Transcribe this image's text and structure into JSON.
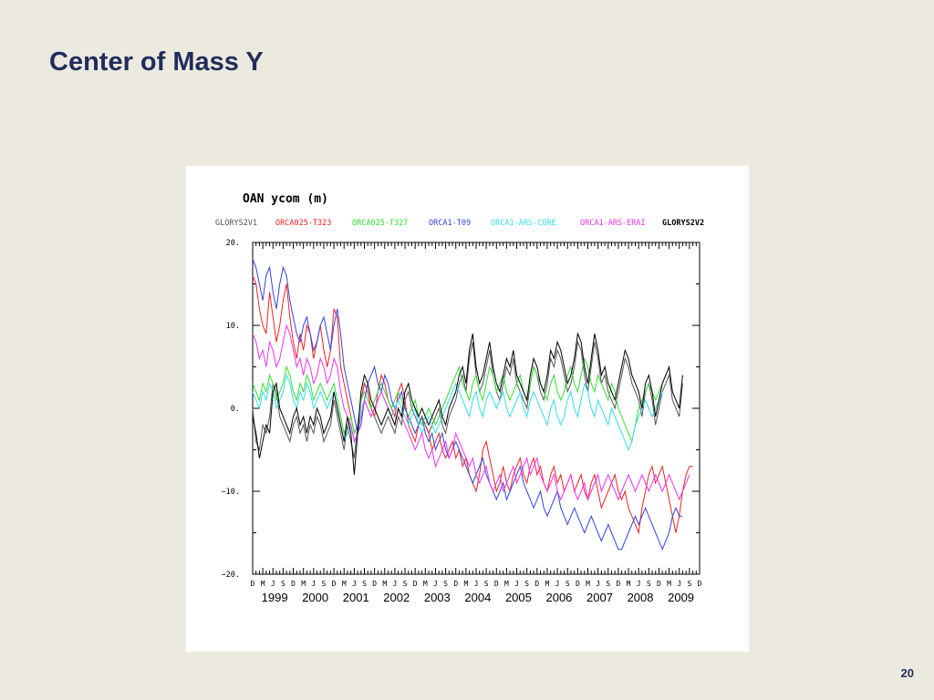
{
  "slide": {
    "title": "Center of Mass Y",
    "page_number": "20"
  },
  "chart_data": {
    "type": "line",
    "title": "OAN    ycom    (m)",
    "xlabel": "",
    "ylabel": "",
    "ylim": [
      -20,
      20
    ],
    "y_ticks": [
      20,
      10,
      0,
      -10,
      -20
    ],
    "y_tick_labels": [
      "20.",
      "10.",
      "0.",
      "−10.",
      "−20."
    ],
    "month_labels": [
      "D",
      "M",
      "J",
      "S",
      "D",
      "M",
      "J",
      "S",
      "D",
      "M",
      "J",
      "S",
      "D",
      "M",
      "J",
      "S",
      "D",
      "M",
      "J",
      "S",
      "D",
      "M",
      "J",
      "S",
      "D",
      "M",
      "J",
      "S",
      "D",
      "M",
      "J",
      "S",
      "D",
      "M",
      "J",
      "S",
      "D",
      "M",
      "J",
      "S",
      "D",
      "M",
      "J",
      "S",
      "D"
    ],
    "years": [
      "1999",
      "2000",
      "2001",
      "2002",
      "2003",
      "2004",
      "2005",
      "2006",
      "2007",
      "2008",
      "2009"
    ],
    "x_start": "1998-12",
    "x_end": "2009-12",
    "grid": false,
    "legend_position": "top",
    "series": [
      {
        "name": "GLORYS2V1",
        "color": "#555555",
        "values": [
          0,
          -4,
          -5,
          -2,
          -3,
          -1,
          3,
          2,
          -1,
          -2,
          -3,
          -4,
          -2,
          -1,
          -3,
          -2,
          -4,
          -2,
          -3,
          -1,
          -2,
          -4,
          -3,
          -2,
          1,
          -1,
          -3,
          -5,
          -2,
          -4,
          -6,
          -2,
          1,
          3,
          2,
          0,
          -1,
          -2,
          -3,
          -2,
          -1,
          -2,
          -3,
          -1,
          -2,
          1,
          2,
          0,
          -1,
          -2,
          -1,
          -2,
          -3,
          -2,
          -1,
          0,
          -2,
          -3,
          -1,
          0,
          1,
          3,
          4,
          2,
          6,
          8,
          4,
          2,
          3,
          5,
          7,
          4,
          2,
          1,
          3,
          5,
          4,
          6,
          3,
          2,
          1,
          0,
          3,
          5,
          4,
          2,
          1,
          3,
          6,
          5,
          7,
          6,
          4,
          2,
          3,
          5,
          8,
          7,
          4,
          2,
          5,
          8,
          6,
          3,
          4,
          2,
          1,
          0,
          2,
          4,
          6,
          5,
          3,
          2,
          1,
          -1,
          2,
          3,
          1,
          -2,
          0,
          2,
          3,
          4,
          1,
          0,
          -1,
          3
        ]
      },
      {
        "name": "ORCA025-T323",
        "color": "#EE2222",
        "values": [
          16,
          15,
          12,
          10,
          9,
          14,
          11,
          8,
          10,
          13,
          15,
          11,
          8,
          6,
          9,
          7,
          10,
          9,
          6,
          8,
          10,
          7,
          5,
          7,
          12,
          11,
          5,
          3,
          1,
          -1,
          -3,
          -2,
          1,
          3,
          2,
          0,
          -1,
          2,
          4,
          3,
          1,
          0,
          -1,
          2,
          3,
          1,
          -2,
          -3,
          -4,
          -2,
          -1,
          -2,
          -3,
          -5,
          -4,
          -3,
          -5,
          -6,
          -5,
          -4,
          -6,
          -5,
          -7,
          -6,
          -8,
          -9,
          -10,
          -8,
          -5,
          -4,
          -6,
          -8,
          -10,
          -9,
          -7,
          -9,
          -10,
          -8,
          -7,
          -6,
          -8,
          -9,
          -7,
          -6,
          -8,
          -7,
          -9,
          -10,
          -8,
          -7,
          -9,
          -8,
          -10,
          -9,
          -8,
          -10,
          -9,
          -8,
          -10,
          -11,
          -9,
          -8,
          -10,
          -12,
          -11,
          -10,
          -9,
          -8,
          -10,
          -11,
          -10,
          -12,
          -13,
          -14,
          -15,
          -12,
          -10,
          -8,
          -7,
          -9,
          -8,
          -7,
          -9,
          -11,
          -13,
          -15,
          -13,
          -10,
          -8,
          -7,
          -7
        ]
      },
      {
        "name": "ORCA025-T327",
        "color": "#33DD33",
        "values": [
          3,
          2,
          1,
          3,
          2,
          4,
          3,
          1,
          2,
          3,
          5,
          4,
          2,
          1,
          3,
          2,
          4,
          3,
          1,
          2,
          3,
          2,
          1,
          2,
          3,
          1,
          -1,
          -3,
          -2,
          -1,
          -3,
          -2,
          1,
          2,
          1,
          0,
          1,
          2,
          3,
          2,
          1,
          0,
          1,
          2,
          1,
          0,
          -1,
          0,
          1,
          -1,
          -2,
          -1,
          0,
          -1,
          -2,
          -1,
          0,
          1,
          2,
          3,
          4,
          5,
          3,
          2,
          1,
          3,
          4,
          2,
          1,
          3,
          5,
          4,
          2,
          3,
          4,
          2,
          1,
          2,
          3,
          4,
          2,
          1,
          3,
          5,
          4,
          3,
          2,
          1,
          3,
          4,
          2,
          1,
          2,
          4,
          5,
          3,
          2,
          4,
          6,
          5,
          3,
          2,
          4,
          3,
          2,
          1,
          3,
          2,
          0,
          -1,
          -2,
          -3,
          -4,
          -2,
          0,
          1,
          2,
          3,
          2,
          1,
          2,
          3,
          4
        ]
      },
      {
        "name": "ORCA1-T09",
        "color": "#3344DD",
        "values": [
          18,
          17,
          15,
          13,
          16,
          17,
          14,
          12,
          15,
          17,
          16,
          13,
          11,
          9,
          8,
          10,
          11,
          9,
          7,
          8,
          10,
          11,
          9,
          7,
          10,
          12,
          9,
          5,
          3,
          1,
          -1,
          -3,
          -2,
          1,
          3,
          4,
          5,
          3,
          2,
          4,
          3,
          1,
          0,
          1,
          2,
          0,
          -1,
          -2,
          -3,
          -2,
          -1,
          -3,
          -4,
          -3,
          -5,
          -4,
          -3,
          -5,
          -6,
          -5,
          -4,
          -5,
          -6,
          -7,
          -8,
          -9,
          -8,
          -7,
          -6,
          -8,
          -9,
          -10,
          -11,
          -10,
          -9,
          -11,
          -10,
          -9,
          -8,
          -7,
          -9,
          -10,
          -11,
          -12,
          -11,
          -10,
          -12,
          -13,
          -12,
          -11,
          -10,
          -12,
          -13,
          -14,
          -13,
          -12,
          -13,
          -14,
          -15,
          -14,
          -13,
          -14,
          -15,
          -16,
          -15,
          -14,
          -15,
          -16,
          -17,
          -17,
          -16,
          -15,
          -14,
          -13,
          -14,
          -13,
          -12,
          -13,
          -14,
          -15,
          -16,
          -17,
          -16,
          -15,
          -13,
          -12,
          -13,
          -13
        ]
      },
      {
        "name": "ORCA1-ARS-CORE",
        "color": "#33DDEE",
        "values": [
          2,
          1,
          0,
          2,
          1,
          3,
          2,
          0,
          1,
          2,
          4,
          3,
          1,
          0,
          2,
          1,
          3,
          2,
          0,
          1,
          2,
          1,
          0,
          1,
          2,
          0,
          -2,
          -4,
          -3,
          -2,
          -4,
          -3,
          0,
          1,
          0,
          -1,
          0,
          1,
          2,
          1,
          0,
          -1,
          0,
          1,
          0,
          -1,
          -2,
          -1,
          0,
          -2,
          -3,
          -2,
          -1,
          -2,
          -3,
          -2,
          -1,
          0,
          1,
          2,
          3,
          2,
          1,
          0,
          -1,
          1,
          2,
          0,
          -1,
          1,
          2,
          1,
          0,
          1,
          2,
          0,
          -1,
          0,
          1,
          2,
          0,
          -1,
          1,
          2,
          1,
          0,
          -1,
          -2,
          0,
          1,
          -1,
          -2,
          -1,
          1,
          2,
          0,
          -1,
          1,
          3,
          2,
          0,
          -1,
          1,
          0,
          -1,
          -2,
          0,
          -1,
          -2,
          -3,
          -4,
          -5,
          -4,
          -2,
          -1,
          0,
          1,
          0,
          -1,
          0,
          1,
          2
        ]
      },
      {
        "name": "ORCA1-ARS-ERAI",
        "color": "#EE33EE",
        "values": [
          9,
          8,
          6,
          7,
          5,
          8,
          7,
          5,
          6,
          8,
          10,
          9,
          7,
          5,
          6,
          4,
          6,
          5,
          3,
          4,
          6,
          5,
          3,
          4,
          6,
          5,
          2,
          0,
          -1,
          -2,
          -4,
          -3,
          -1,
          1,
          0,
          -1,
          0,
          1,
          2,
          1,
          0,
          -1,
          -2,
          0,
          -1,
          -2,
          -3,
          -4,
          -5,
          -4,
          -3,
          -5,
          -6,
          -5,
          -7,
          -6,
          -5,
          -4,
          -6,
          -5,
          -3,
          -4,
          -5,
          -6,
          -7,
          -6,
          -8,
          -9,
          -8,
          -7,
          -9,
          -10,
          -9,
          -8,
          -10,
          -9,
          -8,
          -7,
          -9,
          -8,
          -7,
          -6,
          -8,
          -7,
          -6,
          -8,
          -9,
          -10,
          -9,
          -8,
          -10,
          -11,
          -10,
          -9,
          -8,
          -10,
          -11,
          -10,
          -9,
          -11,
          -10,
          -9,
          -8,
          -10,
          -9,
          -8,
          -9,
          -10,
          -11,
          -10,
          -9,
          -8,
          -9,
          -10,
          -9,
          -8,
          -9,
          -10,
          -9,
          -8,
          -9,
          -10,
          -9,
          -8,
          -9,
          -10,
          -11,
          -10,
          -9,
          -8
        ]
      },
      {
        "name": "GLORYS2V2",
        "color": "#000000",
        "values": [
          -1,
          -3,
          -6,
          -4,
          -2,
          -3,
          2,
          3,
          0,
          -1,
          -2,
          -3,
          -1,
          0,
          -2,
          -1,
          -3,
          -1,
          -2,
          0,
          -1,
          -3,
          -2,
          -1,
          2,
          0,
          -2,
          -4,
          -1,
          -3,
          -8,
          -3,
          2,
          4,
          3,
          1,
          0,
          -1,
          -2,
          -1,
          0,
          -1,
          -2,
          0,
          -1,
          2,
          3,
          1,
          0,
          -1,
          0,
          -1,
          -2,
          -1,
          0,
          1,
          -1,
          -2,
          0,
          1,
          2,
          4,
          5,
          3,
          7,
          9,
          5,
          3,
          4,
          6,
          8,
          5,
          3,
          2,
          4,
          6,
          5,
          7,
          4,
          3,
          2,
          1,
          4,
          6,
          5,
          3,
          2,
          4,
          7,
          6,
          8,
          7,
          5,
          3,
          4,
          6,
          9,
          8,
          5,
          3,
          6,
          9,
          7,
          4,
          5,
          3,
          2,
          1,
          3,
          5,
          7,
          6,
          4,
          3,
          2,
          0,
          3,
          4,
          2,
          -1,
          1,
          3,
          4,
          5,
          2,
          1,
          0,
          4
        ]
      }
    ]
  }
}
